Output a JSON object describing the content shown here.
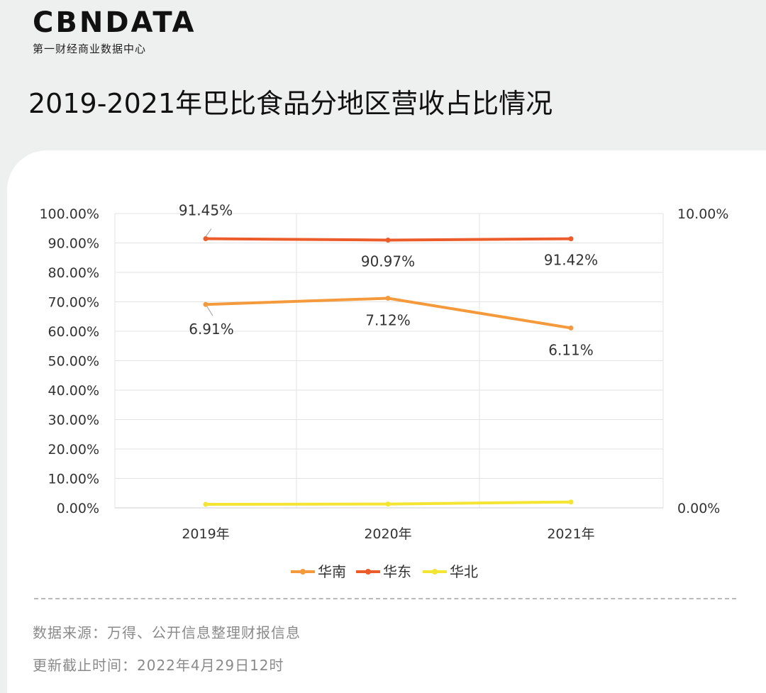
{
  "brand": {
    "logo": "CBNDATA",
    "subtitle": "第一财经商业数据中心"
  },
  "title": "2019-2021年巴比食品分地区营收占比情况",
  "colors": {
    "south": "#f59a3c",
    "east": "#ec5b2a",
    "north": "#f4e532",
    "grid": "#e3e3e3"
  },
  "chart_data": {
    "type": "line",
    "categories": [
      "2019年",
      "2020年",
      "2021年"
    ],
    "y_left": {
      "min": 0,
      "max": 100,
      "ticks": [
        "0.00%",
        "10.00%",
        "20.00%",
        "30.00%",
        "40.00%",
        "50.00%",
        "60.00%",
        "70.00%",
        "80.00%",
        "90.00%",
        "100.00%"
      ]
    },
    "y_right": {
      "min": 0,
      "max": 10,
      "ticks": [
        "0.00%",
        "10.00%"
      ]
    },
    "series": [
      {
        "name": "华南",
        "axis": "right",
        "color": "#f59a3c",
        "values": [
          6.91,
          7.12,
          6.11
        ],
        "labels": [
          "6.91%",
          "7.12%",
          "6.11%"
        ]
      },
      {
        "name": "华东",
        "axis": "left",
        "color": "#ec5b2a",
        "values": [
          91.45,
          90.97,
          91.42
        ],
        "labels": [
          "91.45%",
          "90.97%",
          "91.42%"
        ]
      },
      {
        "name": "华北",
        "axis": "left",
        "color": "#f4e532",
        "values": [
          1.2,
          1.3,
          2.0
        ],
        "labels": []
      }
    ],
    "grid": true,
    "legend_position": "bottom"
  },
  "footer": {
    "source": "数据来源：万得、公开信息整理财报信息",
    "updated": "更新截止时间：2022年4月29日12时"
  }
}
